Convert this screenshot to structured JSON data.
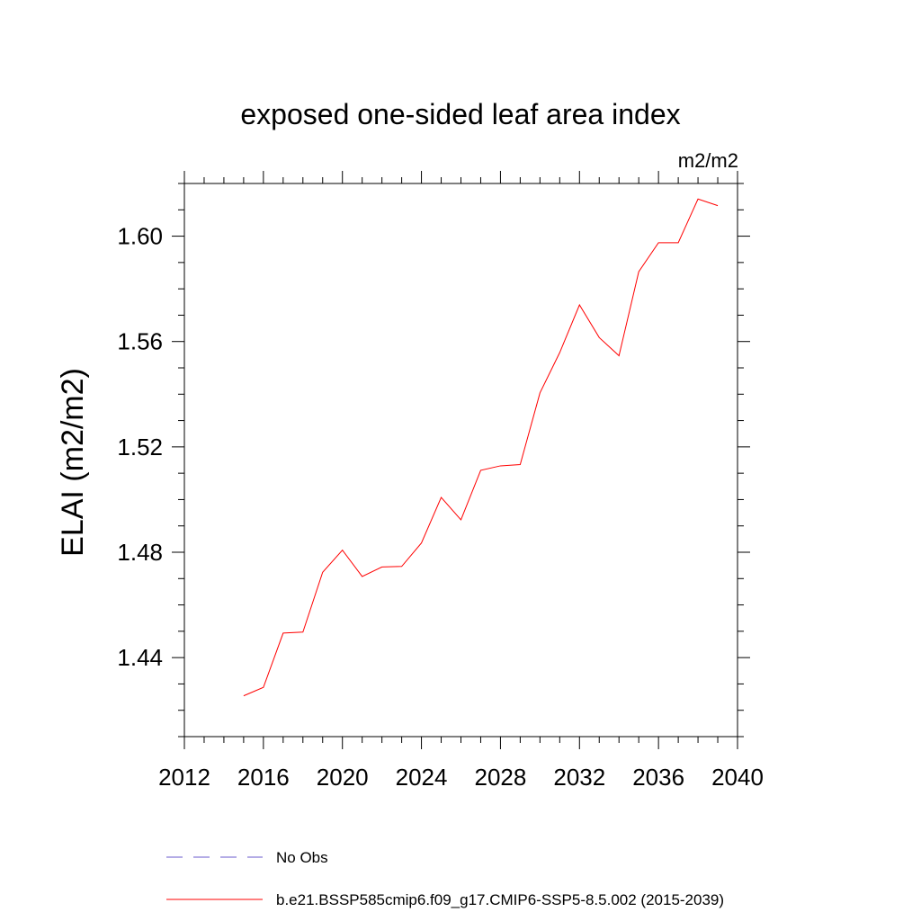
{
  "chart_data": {
    "type": "line",
    "title": "exposed one-sided leaf area index",
    "units": "m2/m2",
    "ylabel": "ELAI  (m2/m2)",
    "xlabel": "",
    "xlim": [
      2012,
      2040
    ],
    "ylim": [
      1.41,
      1.62
    ],
    "x_major_ticks": [
      2012,
      2016,
      2020,
      2024,
      2028,
      2032,
      2036,
      2040
    ],
    "x_minor_step": 1,
    "y_major_ticks": [
      1.44,
      1.48,
      1.52,
      1.56,
      1.6
    ],
    "y_tick_labels": [
      "1.44",
      "1.48",
      "1.52",
      "1.56",
      "1.60"
    ],
    "y_minor_step": 0.01,
    "series": [
      {
        "name": "b.e21.BSSP585cmip6.f09_g17.CMIP6-SSP5-8.5.002 (2015-2039)",
        "color": "#ff0000",
        "style": "solid",
        "x": [
          2015,
          2016,
          2017,
          2018,
          2019,
          2020,
          2021,
          2022,
          2023,
          2024,
          2025,
          2026,
          2027,
          2028,
          2029,
          2030,
          2031,
          2032,
          2033,
          2034,
          2035,
          2036,
          2037,
          2038,
          2039
        ],
        "values": [
          1.4255,
          1.4287,
          1.4493,
          1.4497,
          1.4724,
          1.4808,
          1.4708,
          1.4744,
          1.4746,
          1.4835,
          1.5008,
          1.4923,
          1.5111,
          1.5128,
          1.5133,
          1.5405,
          1.5558,
          1.5739,
          1.5615,
          1.5546,
          1.5865,
          1.5975,
          1.5975,
          1.6141,
          1.6116
        ]
      }
    ],
    "legend": [
      {
        "label": "No Obs",
        "color": "#6a5acd",
        "style": "dashed"
      },
      {
        "label": "b.e21.BSSP585cmip6.f09_g17.CMIP6-SSP5-8.5.002 (2015-2039)",
        "color": "#ff0000",
        "style": "solid"
      }
    ]
  }
}
